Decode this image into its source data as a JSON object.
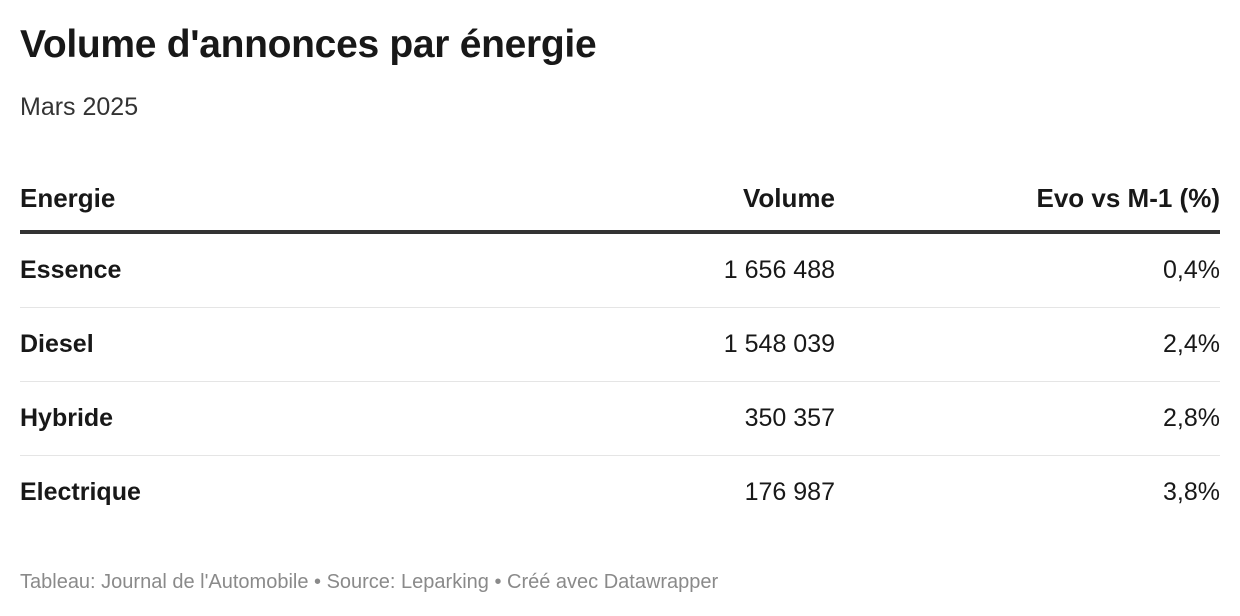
{
  "header": {
    "title": "Volume d'annonces par énergie",
    "subtitle": "Mars 2025"
  },
  "chart_data": {
    "type": "table",
    "title": "Volume d'annonces par énergie",
    "subtitle": "Mars 2025",
    "columns": [
      "Energie",
      "Volume",
      "Evo vs M-1 (%)"
    ],
    "rows": [
      {
        "energie": "Essence",
        "volume": "1 656 488",
        "evo": "0,4%"
      },
      {
        "energie": "Diesel",
        "volume": "1 548 039",
        "evo": "2,4%"
      },
      {
        "energie": "Hybride",
        "volume": "350 357",
        "evo": "2,8%"
      },
      {
        "energie": "Electrique",
        "volume": "176 987",
        "evo": "3,8%"
      }
    ]
  },
  "footer": {
    "text": "Tableau: Journal de l'Automobile • Source: Leparking • Créé avec Datawrapper"
  },
  "colors": {
    "text": "#181818",
    "header_rule": "#333333",
    "row_divider": "#e5e5e5",
    "footer_text": "#8a8a8a"
  }
}
